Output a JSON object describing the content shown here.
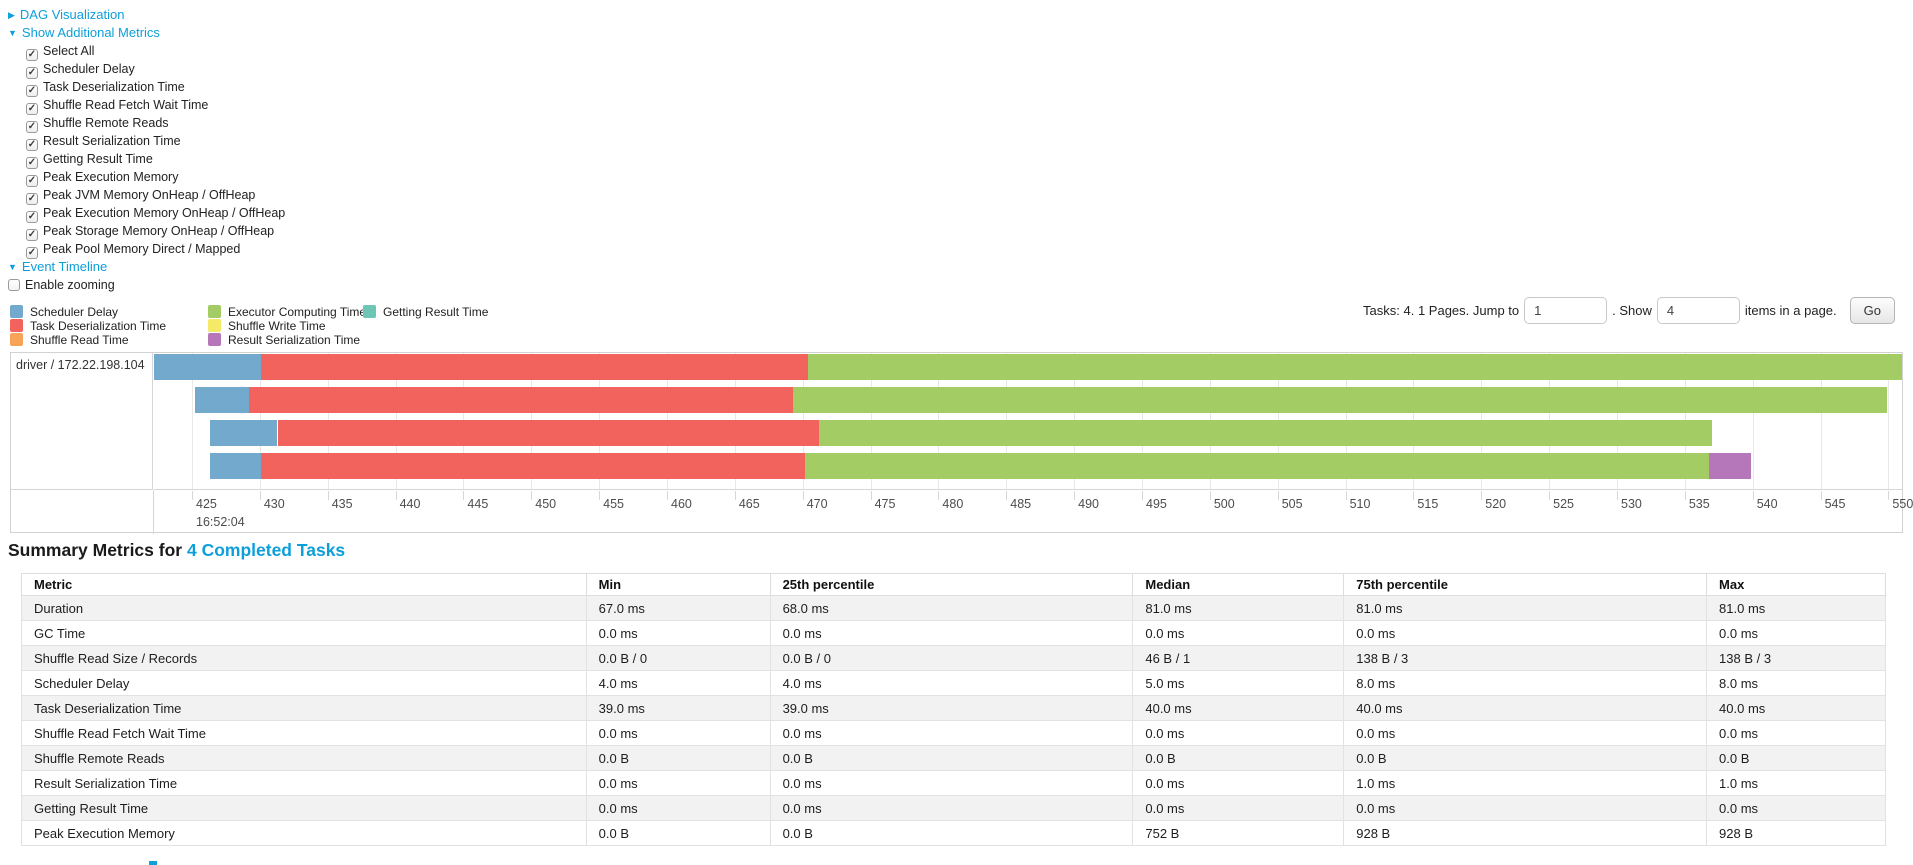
{
  "colors": {
    "link_blue": "#0d9fd9",
    "scheduler_delay": "#74A9CE",
    "task_deserialization": "#F3635E",
    "shuffle_read": "#F8A458",
    "executor_computing": "#A4CC64",
    "shuffle_write": "#F5EA67",
    "result_serialization": "#B577BA",
    "getting_result": "#6CC5B5",
    "stripe": "#f2f2f2"
  },
  "sections": {
    "dag": {
      "arrow": "▶",
      "label": "DAG Visualization"
    },
    "metrics": {
      "arrow": "▼",
      "label": "Show Additional Metrics",
      "items": [
        {
          "label": "Select All",
          "checked": true
        },
        {
          "label": "Scheduler Delay",
          "checked": true
        },
        {
          "label": "Task Deserialization Time",
          "checked": true
        },
        {
          "label": "Shuffle Read Fetch Wait Time",
          "checked": true
        },
        {
          "label": "Shuffle Remote Reads",
          "checked": true
        },
        {
          "label": "Result Serialization Time",
          "checked": true
        },
        {
          "label": "Getting Result Time",
          "checked": true
        },
        {
          "label": "Peak Execution Memory",
          "checked": true
        },
        {
          "label": "Peak JVM Memory OnHeap / OffHeap",
          "checked": true
        },
        {
          "label": "Peak Execution Memory OnHeap / OffHeap",
          "checked": true
        },
        {
          "label": "Peak Storage Memory OnHeap / OffHeap",
          "checked": true
        },
        {
          "label": "Peak Pool Memory Direct / Mapped",
          "checked": true
        }
      ]
    },
    "timeline": {
      "arrow": "▼",
      "label": "Event Timeline",
      "zoom_label": "Enable zooming",
      "zoom_checked": false
    }
  },
  "legend": {
    "columns": [
      [
        {
          "key": "scheduler_delay",
          "label": "Scheduler Delay"
        },
        {
          "key": "task_deserialization",
          "label": "Task Deserialization Time"
        },
        {
          "key": "shuffle_read",
          "label": "Shuffle Read Time"
        }
      ],
      [
        {
          "key": "executor_computing",
          "label": "Executor Computing Time"
        },
        {
          "key": "shuffle_write",
          "label": "Shuffle Write Time"
        },
        {
          "key": "result_serialization",
          "label": "Result Serialization Time"
        }
      ],
      [
        {
          "key": "getting_result",
          "label": "Getting Result Time"
        }
      ]
    ]
  },
  "pagination": {
    "summary_text": "Tasks: 4. 1 Pages. Jump to",
    "jump_value": "1",
    "show_text": ". Show",
    "show_value": "4",
    "items_text": "items in a page.",
    "go_label": "Go"
  },
  "chart_data": {
    "type": "timeline",
    "group_label": "driver / 172.22.198.104",
    "axis": {
      "start": 422.2,
      "end": 551.0,
      "tick_start": 425,
      "tick_end": 550,
      "tick_step": 5,
      "major_label": "16:52:04"
    },
    "tasks": [
      {
        "segments": [
          {
            "key": "scheduler_delay",
            "from": 422.2,
            "to": 430.1
          },
          {
            "key": "task_deserialization",
            "from": 430.1,
            "to": 470.4
          },
          {
            "key": "executor_computing",
            "from": 470.4,
            "to": 551.0
          }
        ]
      },
      {
        "segments": [
          {
            "key": "scheduler_delay",
            "from": 425.2,
            "to": 429.2
          },
          {
            "key": "task_deserialization",
            "from": 429.2,
            "to": 469.3
          },
          {
            "key": "executor_computing",
            "from": 469.3,
            "to": 549.9
          }
        ]
      },
      {
        "segments": [
          {
            "key": "scheduler_delay",
            "from": 426.3,
            "to": 431.3
          },
          {
            "key": "task_deserialization",
            "from": 431.3,
            "to": 471.2
          },
          {
            "key": "executor_computing",
            "from": 471.2,
            "to": 537.0
          }
        ]
      },
      {
        "segments": [
          {
            "key": "scheduler_delay",
            "from": 426.3,
            "to": 430.1
          },
          {
            "key": "task_deserialization",
            "from": 430.1,
            "to": 470.2
          },
          {
            "key": "executor_computing",
            "from": 470.2,
            "to": 536.8
          },
          {
            "key": "result_serialization",
            "from": 536.8,
            "to": 539.9
          }
        ]
      }
    ]
  },
  "summary": {
    "title_prefix": "Summary Metrics for",
    "title_link": "4 Completed Tasks",
    "table": {
      "columns": [
        "Metric",
        "Min",
        "25th percentile",
        "Median",
        "75th percentile",
        "Max"
      ],
      "rows": [
        [
          "Duration",
          "67.0 ms",
          "68.0 ms",
          "81.0 ms",
          "81.0 ms",
          "81.0 ms"
        ],
        [
          "GC Time",
          "0.0 ms",
          "0.0 ms",
          "0.0 ms",
          "0.0 ms",
          "0.0 ms"
        ],
        [
          "Shuffle Read Size / Records",
          "0.0 B / 0",
          "0.0 B / 0",
          "46 B / 1",
          "138 B / 3",
          "138 B / 3"
        ],
        [
          "Scheduler Delay",
          "4.0 ms",
          "4.0 ms",
          "5.0 ms",
          "8.0 ms",
          "8.0 ms"
        ],
        [
          "Task Deserialization Time",
          "39.0 ms",
          "39.0 ms",
          "40.0 ms",
          "40.0 ms",
          "40.0 ms"
        ],
        [
          "Shuffle Read Fetch Wait Time",
          "0.0 ms",
          "0.0 ms",
          "0.0 ms",
          "0.0 ms",
          "0.0 ms"
        ],
        [
          "Shuffle Remote Reads",
          "0.0 B",
          "0.0 B",
          "0.0 B",
          "0.0 B",
          "0.0 B"
        ],
        [
          "Result Serialization Time",
          "0.0 ms",
          "0.0 ms",
          "0.0 ms",
          "1.0 ms",
          "1.0 ms"
        ],
        [
          "Getting Result Time",
          "0.0 ms",
          "0.0 ms",
          "0.0 ms",
          "0.0 ms",
          "0.0 ms"
        ],
        [
          "Peak Execution Memory",
          "0.0 B",
          "0.0 B",
          "752 B",
          "928 B",
          "928 B"
        ]
      ]
    }
  }
}
